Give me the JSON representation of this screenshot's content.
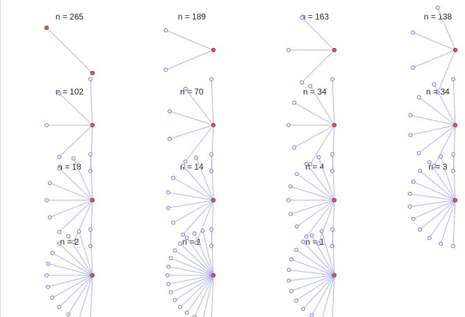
{
  "panels": [
    {
      "title": "n = 265"
    },
    {
      "title": "n = 189"
    },
    {
      "title": "n = 163"
    },
    {
      "title": "n = 138"
    },
    {
      "title": "n = 102"
    },
    {
      "title": "n = 70"
    },
    {
      "title": "n = 34"
    },
    {
      "title": "n = 34"
    },
    {
      "title": "n = 18"
    },
    {
      "title": "n = 14"
    },
    {
      "title": "n = 4"
    },
    {
      "title": "n = 3"
    },
    {
      "title": "n = 2"
    },
    {
      "title": "n = 1"
    },
    {
      "title": "n = 1"
    }
  ]
}
